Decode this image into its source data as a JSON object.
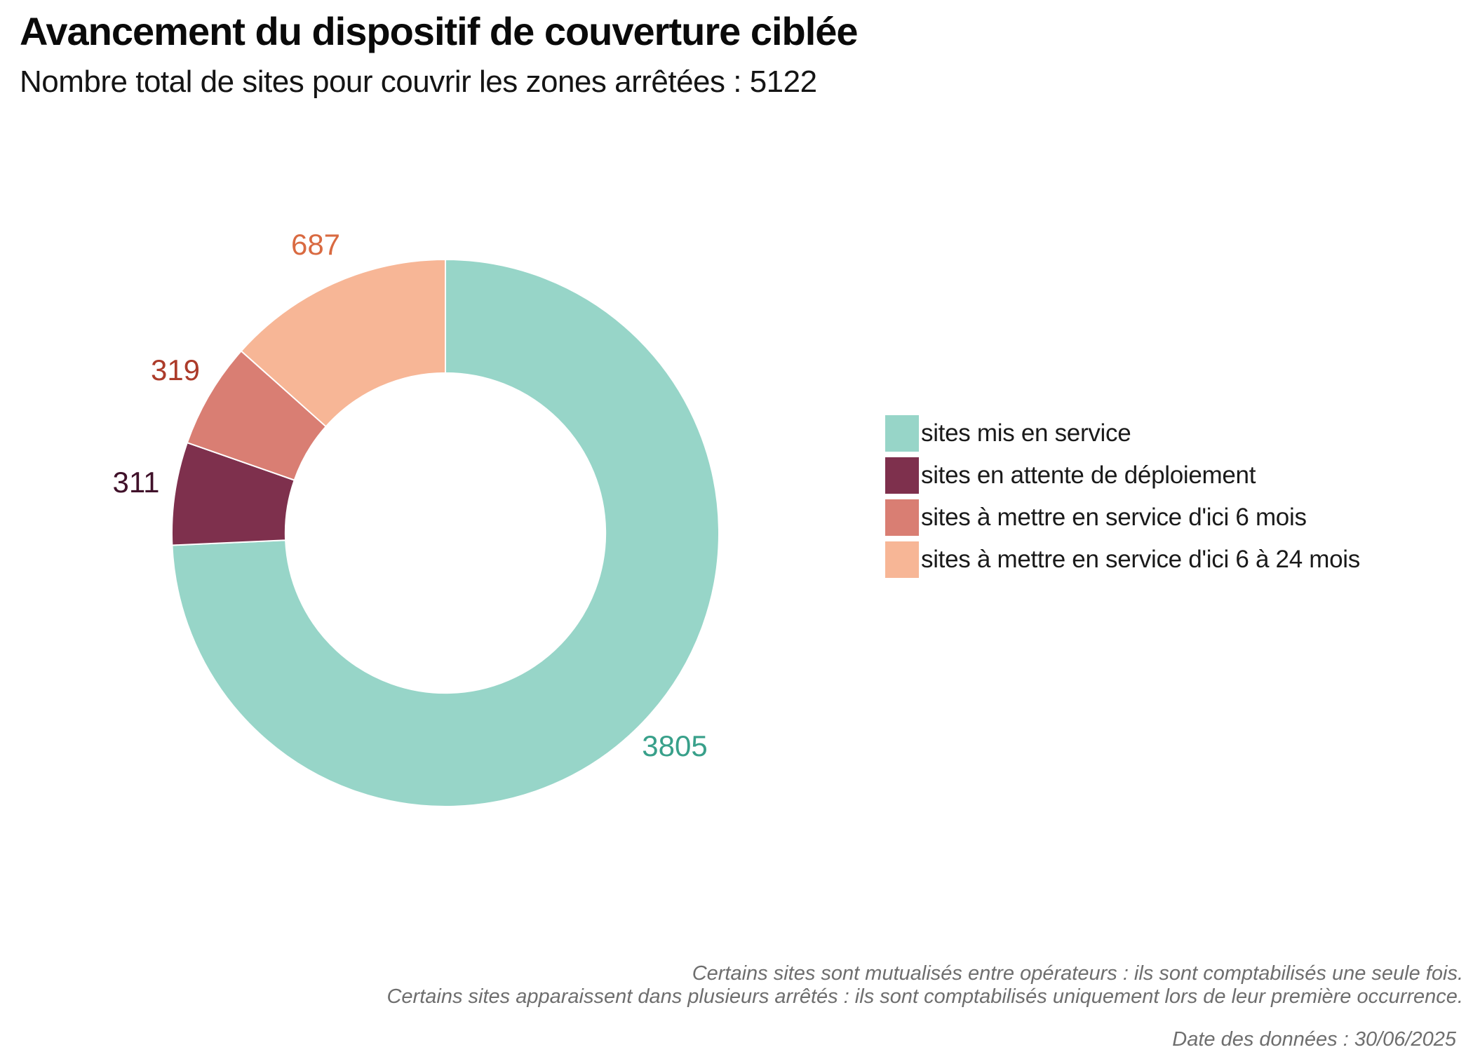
{
  "header": {
    "title": "Avancement du dispositif de couverture ciblée",
    "subtitle": "Nombre total de sites pour couvrir les zones arrêtées : 5122"
  },
  "chart_data": {
    "type": "pie",
    "subtype": "donut",
    "title": "Avancement du dispositif de couverture ciblée",
    "total_label": "Nombre total de sites pour couvrir les zones arrêtées",
    "total": 5122,
    "categories": [
      "sites mis en service",
      "sites en attente de déploiement",
      "sites à mettre en service d'ici 6 mois",
      "sites à mettre en service d'ici 6 à 24 mois"
    ],
    "values": [
      3805,
      311,
      319,
      687
    ],
    "colors": [
      "#97D5C8",
      "#7E304D",
      "#D97E73",
      "#F7B696"
    ],
    "label_colors": [
      "#38A08A",
      "#40112A",
      "#AC3B2A",
      "#D96A41"
    ],
    "start_angle_deg": 0,
    "direction": "clockwise",
    "hole_ratio": 0.585,
    "legend_position": "right",
    "grid": false
  },
  "footer": {
    "note1": "Certains sites sont mutualisés entre opérateurs : ils sont comptabilisés une seule fois.",
    "note2": "Certains sites apparaissent dans plusieurs arrêtés : ils sont comptabilisés uniquement lors de leur première occurrence.",
    "date": "Date des données : 30/06/2025"
  }
}
